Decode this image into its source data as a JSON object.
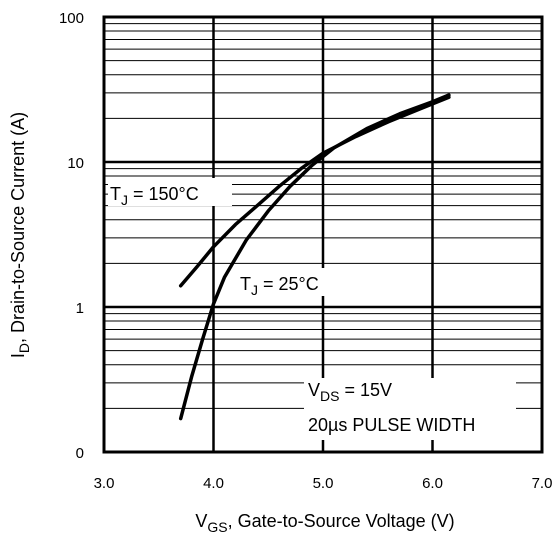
{
  "chart_data": {
    "type": "line",
    "x_axis": {
      "label_main": "V",
      "label_sub": "GS",
      "label_rest": ", Gate-to-Source Voltage (V)",
      "scale": "linear",
      "range": [
        3.0,
        7.0
      ],
      "ticks": [
        3.0,
        4.0,
        5.0,
        6.0,
        7.0
      ],
      "tick_labels": [
        "3.0",
        "4.0",
        "5.0",
        "6.0",
        "7.0"
      ]
    },
    "y_axis": {
      "label_main": "I",
      "label_sub": "D",
      "label_rest": ", Drain-to-Source Current  (A)",
      "scale": "log",
      "range": [
        0.1,
        100
      ],
      "ticks": [
        0.1,
        1,
        10,
        100
      ],
      "tick_labels": [
        "0",
        "1",
        "10",
        "100"
      ]
    },
    "grid": true,
    "series": [
      {
        "name": "T_J = 150°C",
        "label_main": "T",
        "label_sub": "J",
        "label_rest": " = 150°C",
        "x": [
          3.7,
          3.85,
          4.0,
          4.2,
          4.4,
          4.6,
          4.8,
          5.0,
          5.3,
          5.6,
          5.9,
          6.15
        ],
        "y": [
          1.4,
          1.9,
          2.6,
          3.7,
          5.0,
          6.8,
          9.0,
          11.5,
          15.0,
          19.0,
          23.5,
          28.0
        ]
      },
      {
        "name": "T_J = 25°C",
        "label_main": "T",
        "label_sub": "J",
        "label_rest": " = 25°C",
        "x": [
          3.7,
          3.8,
          3.9,
          4.0,
          4.1,
          4.3,
          4.5,
          4.7,
          4.9,
          5.1,
          5.4,
          5.7,
          6.0,
          6.15
        ],
        "y": [
          0.17,
          0.33,
          0.6,
          1.05,
          1.6,
          2.9,
          4.6,
          6.8,
          9.5,
          12.5,
          17.0,
          21.5,
          26.0,
          29.0
        ]
      }
    ],
    "conditions": {
      "vds_main": "V",
      "vds_sub": "DS",
      "vds_rest": " = 15V",
      "pulse": "20µs PULSE WIDTH"
    }
  }
}
